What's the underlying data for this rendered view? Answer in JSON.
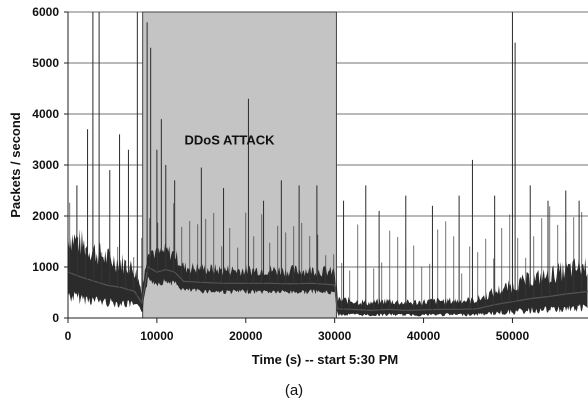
{
  "chart_data": {
    "type": "line",
    "xlabel": "Time (s) -- start 5:30 PM",
    "ylabel": "Packets / second",
    "xlim": [
      0,
      58500
    ],
    "ylim": [
      0,
      6000
    ],
    "x_ticks": [
      0,
      10000,
      20000,
      30000,
      40000,
      50000
    ],
    "y_ticks": [
      0,
      1000,
      2000,
      3000,
      4000,
      5000,
      6000
    ],
    "grid": "horizontal",
    "annotations": [
      {
        "label": "DDoS ATTACK",
        "x_start": 8400,
        "x_end": 30200
      }
    ],
    "series": [
      {
        "color": "#2b2b2b",
        "x": [
          0,
          1500,
          3000,
          4500,
          6000,
          7500,
          8300,
          9000,
          10000,
          11000,
          12000,
          13000,
          15000,
          17500,
          20000,
          22500,
          25000,
          27500,
          30000,
          30300,
          32000,
          34000,
          36000,
          38000,
          40000,
          42000,
          44000,
          46000,
          48000,
          50000,
          52000,
          54000,
          56000,
          58500
        ],
        "y": [
          900,
          800,
          720,
          640,
          600,
          520,
          300,
          1000,
          900,
          950,
          900,
          720,
          700,
          680,
          680,
          680,
          670,
          680,
          650,
          180,
          170,
          150,
          170,
          150,
          160,
          170,
          170,
          180,
          260,
          320,
          380,
          420,
          470,
          520
        ]
      }
    ],
    "spikes": [
      {
        "x": 1000,
        "y": 2600
      },
      {
        "x": 2200,
        "y": 3700
      },
      {
        "x": 2800,
        "y": 6000
      },
      {
        "x": 3500,
        "y": 6000
      },
      {
        "x": 4700,
        "y": 2900
      },
      {
        "x": 5800,
        "y": 3600
      },
      {
        "x": 6800,
        "y": 3300
      },
      {
        "x": 7800,
        "y": 6000
      },
      {
        "x": 8900,
        "y": 5800
      },
      {
        "x": 9300,
        "y": 5300
      },
      {
        "x": 10000,
        "y": 3300
      },
      {
        "x": 10500,
        "y": 3900
      },
      {
        "x": 11000,
        "y": 3000
      },
      {
        "x": 12000,
        "y": 2700
      },
      {
        "x": 15000,
        "y": 2950
      },
      {
        "x": 17500,
        "y": 2550
      },
      {
        "x": 20300,
        "y": 4300
      },
      {
        "x": 22000,
        "y": 2300
      },
      {
        "x": 24000,
        "y": 2700
      },
      {
        "x": 26000,
        "y": 2600
      },
      {
        "x": 28000,
        "y": 2600
      },
      {
        "x": 31000,
        "y": 2300
      },
      {
        "x": 33500,
        "y": 2600
      },
      {
        "x": 35000,
        "y": 2100
      },
      {
        "x": 38000,
        "y": 2400
      },
      {
        "x": 41000,
        "y": 2200
      },
      {
        "x": 44000,
        "y": 2400
      },
      {
        "x": 45500,
        "y": 3100
      },
      {
        "x": 48000,
        "y": 2400
      },
      {
        "x": 50000,
        "y": 6000
      },
      {
        "x": 50300,
        "y": 5400
      },
      {
        "x": 52000,
        "y": 2600
      },
      {
        "x": 54000,
        "y": 2300
      },
      {
        "x": 56000,
        "y": 2500
      },
      {
        "x": 57500,
        "y": 2300
      }
    ]
  },
  "caption": "(a)"
}
